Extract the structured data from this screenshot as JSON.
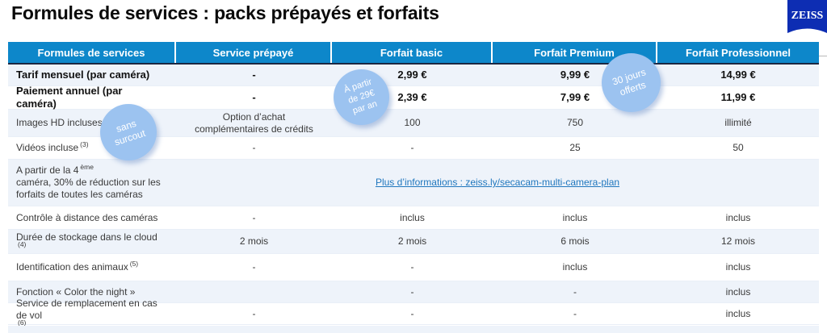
{
  "page": {
    "title": "Formules de services : packs prépayés et forfaits"
  },
  "logo": {
    "text": "ZEISS"
  },
  "colors": {
    "header_bg": "#0d87ca",
    "row_shaded": "#eef3fa",
    "badge_bg": "#9cc3f0",
    "link": "#2077be",
    "logo_blue": "#0d2db3",
    "dark_line": "#1b2742"
  },
  "table": {
    "headers": [
      "Formules de services",
      "Service prépayé",
      "Forfait basic",
      "Forfait Premium",
      "Forfait Professionnel"
    ],
    "rows": [
      {
        "label": "Tarif mensuel (par caméra)",
        "sup": "",
        "label_post": "",
        "bold": true,
        "shaded": true,
        "cells": [
          "-",
          "2,99 €",
          "9,99 €",
          "14,99 €"
        ]
      },
      {
        "label": "Paiement annuel (par caméra)",
        "sup": "",
        "label_post": "",
        "bold": true,
        "shaded": false,
        "cells": [
          "-",
          "2,39 €",
          "7,99 €",
          "11,99 €"
        ]
      },
      {
        "label": "Images HD incluses ",
        "sup": "(2)",
        "label_post": "",
        "bold": false,
        "shaded": true,
        "cells": [
          "Option d’achat\ncomplémentaires de crédits",
          "100",
          "750",
          "illimité"
        ]
      },
      {
        "label": "Vidéos incluse ",
        "sup": "(3)",
        "label_post": "",
        "bold": false,
        "shaded": false,
        "cells": [
          "-",
          "-",
          "25",
          "50"
        ]
      },
      {
        "label": "A partir de la 4",
        "sup": "ème",
        "label_post": " caméra, 30% de réduction sur les forfaits de toutes les caméras",
        "bold": false,
        "shaded": true,
        "link": "Plus d’informations : zeiss.ly/secacam-multi-camera-plan"
      },
      {
        "label": "Contrôle à distance des caméras",
        "sup": "",
        "label_post": "",
        "bold": false,
        "shaded": false,
        "cells": [
          "-",
          "inclus",
          "inclus",
          "inclus"
        ]
      },
      {
        "label": "Durée de stockage dans le cloud ",
        "sup": "(4)",
        "label_post": "",
        "bold": false,
        "shaded": true,
        "cells": [
          "2 mois",
          "2 mois",
          "6 mois",
          "12 mois"
        ]
      },
      {
        "label": "Identification des animaux ",
        "sup": "(5)",
        "label_post": "",
        "bold": false,
        "shaded": false,
        "cells": [
          "-",
          "-",
          "inclus",
          "inclus"
        ]
      },
      {
        "label": "Fonction « Color the night »",
        "sup": "",
        "label_post": "",
        "bold": false,
        "shaded": true,
        "cells": [
          "",
          "-",
          "-",
          "inclus"
        ]
      },
      {
        "label": "Service de remplacement en cas de vol ",
        "sup": "(6)",
        "label_post": "",
        "bold": false,
        "shaded": false,
        "cells": [
          "-",
          "-",
          "-",
          "inclus"
        ]
      }
    ]
  },
  "badges": [
    {
      "name": "badge-sans-surcout",
      "lines": [
        "sans",
        "surcout"
      ]
    },
    {
      "name": "badge-a-partir-de-29e",
      "lines": [
        "À partir",
        "de 29€",
        "par an"
      ]
    },
    {
      "name": "badge-30-jours-offerts",
      "lines": [
        "30 jours",
        "offerts"
      ]
    }
  ]
}
